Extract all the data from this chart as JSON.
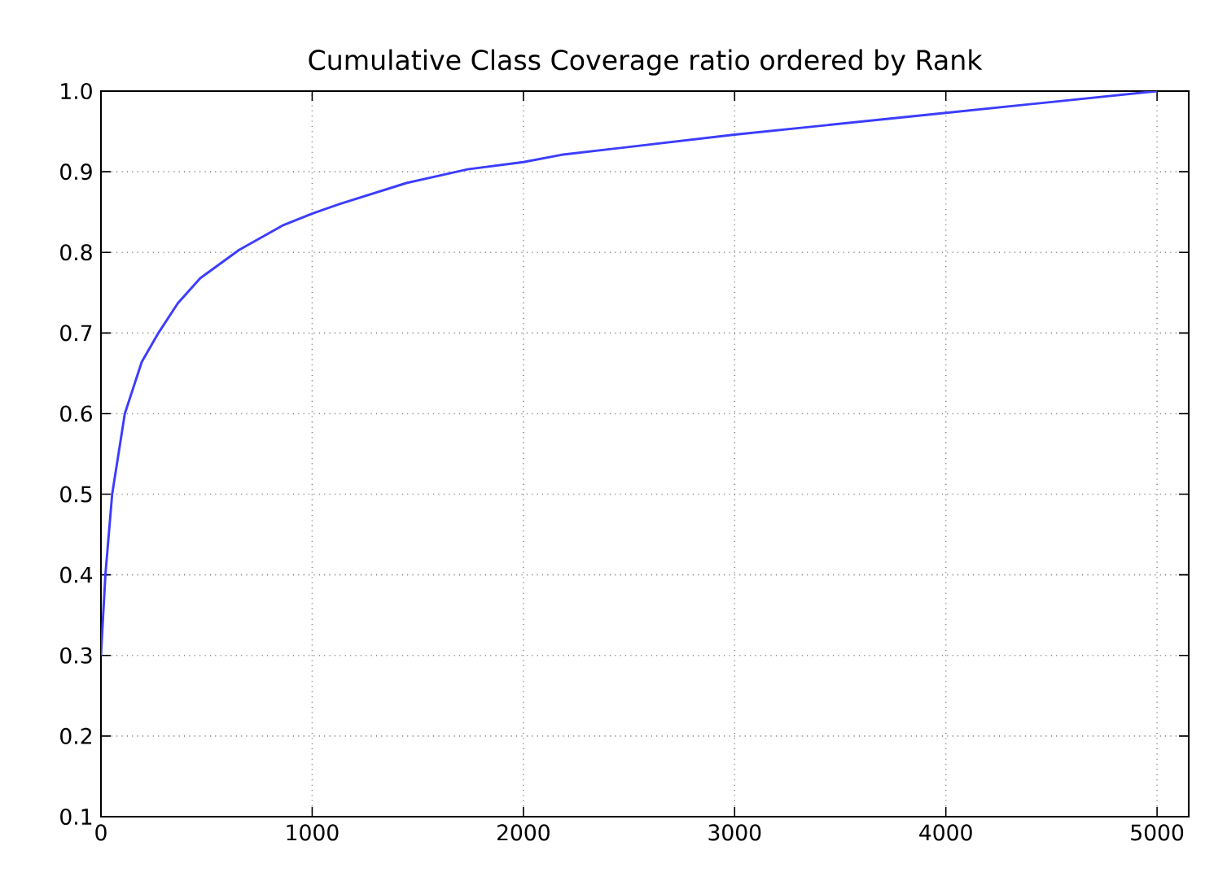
{
  "chart_data": {
    "type": "line",
    "title": "Cumulative Class Coverage ratio ordered by Rank",
    "x": [
      0,
      21,
      53,
      113,
      193,
      272,
      364,
      470,
      654,
      865,
      1000,
      1129,
      1446,
      1736,
      2000,
      2180,
      3000,
      4000,
      5000
    ],
    "series": [
      {
        "color": "#3c3cff",
        "values": [
          0.3,
          0.4,
          0.5,
          0.6,
          0.664,
          0.7,
          0.737,
          0.768,
          0.803,
          0.834,
          0.848,
          0.86,
          0.886,
          0.903,
          0.912,
          0.921,
          0.946,
          0.973,
          1.0
        ]
      }
    ],
    "xlim": [
      0,
      5150
    ],
    "ylim": [
      0.1,
      1.0
    ],
    "xticks": [
      0,
      1000,
      2000,
      3000,
      4000,
      5000
    ],
    "yticks": [
      0.1,
      0.2,
      0.3,
      0.4,
      0.5,
      0.6,
      0.7,
      0.8,
      0.9,
      {
        "value": 1.0,
        "label": "1.0"
      }
    ],
    "grid": true,
    "line_style": "solid",
    "marker": "none"
  }
}
